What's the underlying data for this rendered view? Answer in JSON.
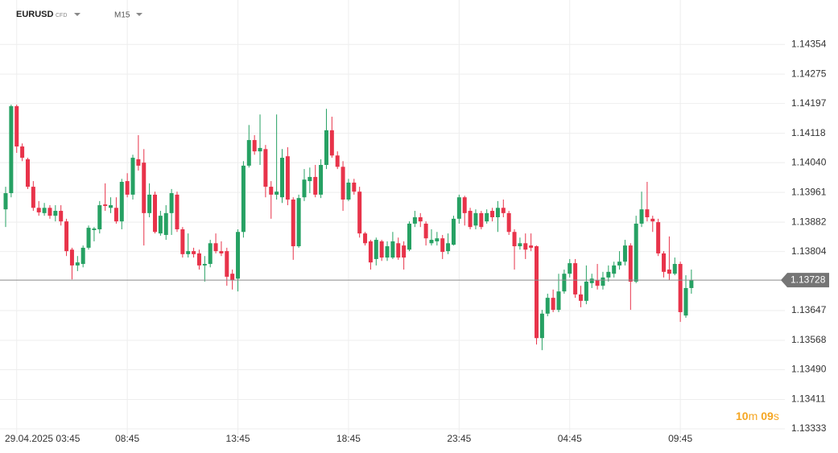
{
  "chart_data": {
    "type": "candlestick",
    "symbol": "EURUSD",
    "instrument": "CFD",
    "timeframe": "M15",
    "countdown": {
      "minutes": "10",
      "minutes_unit": "m",
      "seconds": "09",
      "seconds_unit": "s"
    },
    "current_price": 1.13728,
    "up_color": "#26a163",
    "down_color": "#e8334a",
    "grid": true,
    "ylim": [
      1.13318,
      1.14472
    ],
    "yticks": [
      1.14354,
      1.14275,
      1.14197,
      1.14118,
      {
        "value": 1.1404,
        "label": "1.14040"
      },
      1.13961,
      1.13882,
      1.13804,
      1.13647,
      1.13568,
      {
        "value": 1.1349,
        "label": "1.13490"
      },
      1.13411,
      1.13333
    ],
    "categories": [
      null,
      null,
      "29.04.2025 03:45",
      null,
      null,
      null,
      null,
      null,
      null,
      null,
      null,
      null,
      null,
      null,
      null,
      null,
      null,
      null,
      null,
      null,
      null,
      null,
      "08:45",
      null,
      null,
      null,
      null,
      null,
      null,
      null,
      null,
      null,
      null,
      null,
      null,
      null,
      null,
      null,
      null,
      null,
      null,
      null,
      "13:45",
      null,
      null,
      null,
      null,
      null,
      null,
      null,
      null,
      null,
      null,
      null,
      null,
      null,
      null,
      null,
      null,
      null,
      null,
      null,
      "18:45",
      null,
      null,
      null,
      null,
      null,
      null,
      null,
      null,
      null,
      null,
      null,
      null,
      null,
      null,
      null,
      null,
      null,
      null,
      null,
      "23:45",
      null,
      null,
      null,
      null,
      null,
      null,
      null,
      null,
      null,
      null,
      null,
      null,
      null,
      null,
      null,
      null,
      null,
      null,
      null,
      "04:45",
      null,
      null,
      null,
      null,
      null,
      null,
      null,
      null,
      null,
      null,
      null,
      null,
      null,
      null,
      null,
      null,
      null,
      null,
      null,
      "09:45",
      null,
      null
    ],
    "open": [
      1.13916,
      1.13959,
      1.1419,
      1.14083,
      1.14049,
      1.13976,
      1.1392,
      1.13906,
      1.1392,
      1.13899,
      1.13912,
      1.13884,
      1.13809,
      1.13767,
      1.13771,
      1.13814,
      1.13861,
      1.13863,
      1.13929,
      1.1392,
      1.1392,
      1.13884,
      1.13991,
      1.13955,
      1.14049,
      1.1404,
      1.13906,
      1.13955,
      1.13852,
      1.13848,
      1.13906,
      1.13955,
      1.13863,
      1.13797,
      1.13805,
      1.13799,
      1.13767,
      1.13771,
      1.13826,
      1.13805,
      1.13805,
      1.13745,
      1.13732,
      1.13856,
      1.14032,
      1.141,
      1.1407,
      1.14076,
      1.13976,
      1.13955,
      1.13948,
      1.14057,
      1.13942,
      1.13818,
      1.13948,
      1.13991,
      1.14002,
      1.13955,
      1.14034,
      1.14126,
      1.14059,
      1.14029,
      1.13942,
      1.13987,
      1.13963,
      1.13852,
      1.13831,
      1.13784,
      1.13831,
      1.13788,
      1.13788,
      1.13826,
      1.1382,
      1.13809,
      1.13878,
      1.13895,
      1.13878,
      1.13826,
      1.13831,
      1.13839,
      1.13805,
      1.13822,
      1.13891,
      1.13948,
      1.13912,
      1.13873,
      1.13906,
      1.13884,
      1.13912,
      1.13895,
      1.1392,
      1.13906,
      1.13856,
      1.13818,
      1.13826,
      1.1382,
      1.13818,
      1.13574,
      1.13639,
      1.13681,
      1.13649,
      1.13698,
      1.13745,
      1.13773,
      1.1369,
      1.13673,
      1.1372,
      1.13728,
      1.13713,
      1.13735,
      1.13745,
      1.13767,
      1.13777,
      1.1382,
      1.13724,
      1.13878,
      1.13916,
      1.13891,
      1.13882,
      1.13799,
      1.13756,
      1.13745,
      1.13771,
      1.13634,
      1.13707
    ],
    "high": [
      1.13976,
      1.14194,
      1.14194,
      1.14091,
      1.14053,
      1.13991,
      1.13938,
      1.13933,
      1.13927,
      1.13927,
      1.13927,
      1.13891,
      1.13814,
      1.13792,
      1.1382,
      1.13873,
      1.13869,
      1.13938,
      1.13985,
      1.13948,
      1.13948,
      1.13997,
      1.14012,
      1.14061,
      1.14113,
      1.14076,
      1.13985,
      1.13963,
      1.13912,
      1.13927,
      1.1397,
      1.13963,
      1.13869,
      1.13852,
      1.13814,
      1.13809,
      1.13792,
      1.13835,
      1.13852,
      1.13831,
      1.13814,
      1.13756,
      1.13863,
      1.14044,
      1.1414,
      1.14113,
      1.14168,
      1.14087,
      1.13991,
      1.14168,
      1.14076,
      1.14081,
      1.13948,
      1.13955,
      1.14023,
      1.14027,
      1.14034,
      1.14049,
      1.14183,
      1.14162,
      1.1407,
      1.14044,
      1.13997,
      1.13997,
      1.13976,
      1.13856,
      1.13835,
      1.13841,
      1.13835,
      1.13831,
      1.13856,
      1.13841,
      1.13831,
      1.13884,
      1.13912,
      1.13906,
      1.13884,
      1.13863,
      1.13856,
      1.13848,
      1.13852,
      1.13899,
      1.13955,
      1.13952,
      1.1392,
      1.13916,
      1.13912,
      1.13916,
      1.1392,
      1.13938,
      1.13942,
      1.13912,
      1.13863,
      1.13841,
      1.13852,
      1.13852,
      1.1382,
      1.13649,
      1.13692,
      1.13703,
      1.13745,
      1.13756,
      1.13784,
      1.13784,
      1.13713,
      1.13767,
      1.13745,
      1.13771,
      1.1375,
      1.13767,
      1.13777,
      1.13805,
      1.13835,
      1.13826,
      1.13899,
      1.13963,
      1.13989,
      1.13899,
      1.13891,
      1.13805,
      1.13844,
      1.13788,
      1.13777,
      1.13741,
      1.13756
    ],
    "low": [
      1.13869,
      1.13948,
      1.14066,
      1.14044,
      1.1397,
      1.13912,
      1.13899,
      1.13899,
      1.13891,
      1.13884,
      1.13873,
      1.13792,
      1.1373,
      1.13752,
      1.13762,
      1.13809,
      1.13831,
      1.13852,
      1.13912,
      1.13906,
      1.13878,
      1.13863,
      1.13948,
      1.13942,
      1.14019,
      1.1382,
      1.13895,
      1.13852,
      1.13846,
      1.13835,
      1.13848,
      1.13856,
      1.13788,
      1.13788,
      1.13788,
      1.13756,
      1.13724,
      1.13762,
      1.13799,
      1.13792,
      1.13713,
      1.13703,
      1.13698,
      1.13841,
      1.14027,
      1.14061,
      1.14034,
      1.13948,
      1.13891,
      1.13942,
      1.13933,
      1.13927,
      1.13782,
      1.13814,
      1.13938,
      1.13959,
      1.13948,
      1.13946,
      1.14023,
      1.14053,
      1.14023,
      1.13912,
      1.13938,
      1.13955,
      1.13841,
      1.1382,
      1.13756,
      1.13767,
      1.13779,
      1.13779,
      1.13784,
      1.13782,
      1.13756,
      1.13805,
      1.13869,
      1.13869,
      1.1382,
      1.1382,
      1.1382,
      1.13784,
      1.13797,
      1.1382,
      1.13878,
      1.13873,
      1.13863,
      1.13863,
      1.13863,
      1.13878,
      1.13884,
      1.13856,
      1.13895,
      1.13848,
      1.13756,
      1.13809,
      1.13784,
      1.13805,
      1.13557,
      1.13542,
      1.13632,
      1.13643,
      1.13643,
      1.13692,
      1.13735,
      1.13681,
      1.13656,
      1.13664,
      1.13707,
      1.13703,
      1.13703,
      1.13724,
      1.13735,
      1.13756,
      1.13767,
      1.13649,
      1.1372,
      1.13869,
      1.13884,
      1.13856,
      1.13792,
      1.13735,
      1.13728,
      1.13741,
      1.13617,
      1.13628,
      1.13692
    ],
    "close": [
      1.13959,
      1.1419,
      1.14083,
      1.14053,
      1.13976,
      1.1392,
      1.13908,
      1.1392,
      1.13899,
      1.13912,
      1.13884,
      1.13805,
      1.13767,
      1.13775,
      1.13814,
      1.13867,
      1.13865,
      1.13927,
      1.13925,
      1.13927,
      1.13884,
      1.13989,
      1.13955,
      1.14053,
      1.14032,
      1.13906,
      1.13955,
      1.13856,
      1.13899,
      1.13906,
      1.13959,
      1.13863,
      1.13797,
      1.13805,
      1.13797,
      1.13767,
      1.13771,
      1.13826,
      1.13805,
      1.13799,
      1.13737,
      1.13728,
      1.13856,
      1.14032,
      1.141,
      1.1407,
      1.14079,
      1.13976,
      1.13955,
      1.13963,
      1.14053,
      1.13942,
      1.13818,
      1.13946,
      1.13995,
      1.14002,
      1.13955,
      1.14034,
      1.14126,
      1.14059,
      1.14029,
      1.13942,
      1.13987,
      1.13963,
      1.13852,
      1.13826,
      1.13775,
      1.13835,
      1.13788,
      1.13818,
      1.13831,
      1.13788,
      1.13788,
      1.13878,
      1.13895,
      1.13884,
      1.13839,
      1.13835,
      1.13839,
      1.13803,
      1.13826,
      1.13891,
      1.13948,
      1.13906,
      1.13869,
      1.13906,
      1.13869,
      1.13906,
      1.13895,
      1.1392,
      1.13906,
      1.13856,
      1.13818,
      1.13826,
      1.13809,
      1.13814,
      1.13574,
      1.13639,
      1.13681,
      1.13649,
      1.13698,
      1.13745,
      1.13773,
      1.1369,
      1.13673,
      1.13724,
      1.13732,
      1.13713,
      1.13735,
      1.1375,
      1.13767,
      1.13777,
      1.1382,
      1.13724,
      1.13878,
      1.13916,
      1.13895,
      1.13884,
      1.13799,
      1.1375,
      1.13745,
      1.13771,
      1.13643,
      1.13707,
      1.13728
    ]
  }
}
